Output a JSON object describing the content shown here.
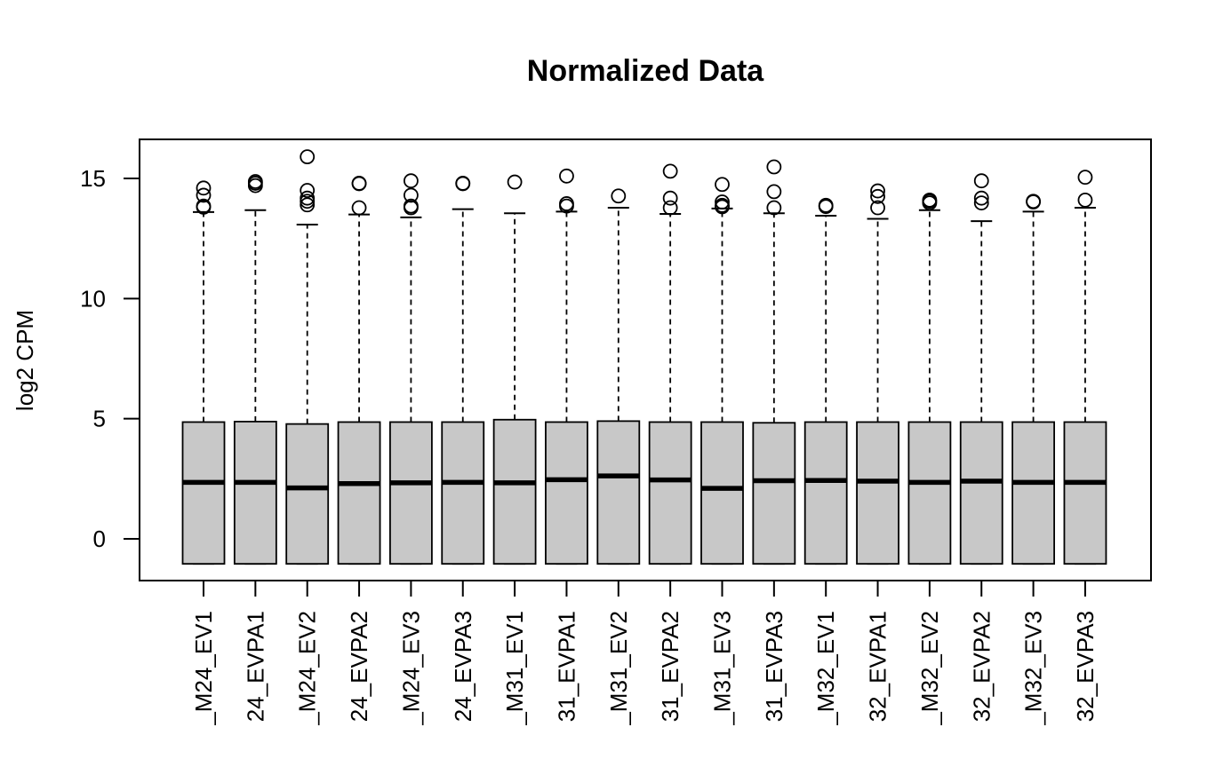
{
  "chart_data": {
    "type": "boxplot",
    "title": "Normalized Data",
    "xlabel": "",
    "ylabel": "log2 CPM",
    "ylim": [
      -1.7,
      16.6
    ],
    "yticks": [
      0,
      5,
      10,
      15
    ],
    "box_fill": "#c8c8c8",
    "categories": [
      "_M24_EV1",
      "24_EVPA1",
      "_M24_EV2",
      "24_EVPA2",
      "_M24_EV3",
      "24_EVPA3",
      "_M31_EV1",
      "31_EVPA1",
      "_M31_EV2",
      "31_EVPA2",
      "_M31_EV3",
      "31_EVPA3",
      "_M32_EV1",
      "32_EVPA1",
      "_M32_EV2",
      "32_EVPA2",
      "_M32_EV3",
      "32_EVPA3"
    ],
    "boxes": [
      {
        "min": -1.04,
        "q1": -1.04,
        "median": 2.35,
        "q3": 4.86,
        "max": 13.6,
        "outliers": [
          13.8,
          13.85,
          14.3,
          14.6
        ]
      },
      {
        "min": -1.04,
        "q1": -1.04,
        "median": 2.35,
        "q3": 4.88,
        "max": 13.68,
        "outliers": [
          14.7,
          14.8,
          14.87
        ]
      },
      {
        "min": -1.04,
        "q1": -1.04,
        "median": 2.12,
        "q3": 4.78,
        "max": 13.08,
        "outliers": [
          13.9,
          14.05,
          14.18,
          14.5,
          15.9
        ]
      },
      {
        "min": -1.04,
        "q1": -1.04,
        "median": 2.3,
        "q3": 4.86,
        "max": 13.5,
        "outliers": [
          13.78,
          14.78,
          14.8
        ]
      },
      {
        "min": -1.04,
        "q1": -1.04,
        "median": 2.33,
        "q3": 4.86,
        "max": 13.38,
        "outliers": [
          13.78,
          13.85,
          14.3,
          14.9
        ]
      },
      {
        "min": -1.04,
        "q1": -1.04,
        "median": 2.35,
        "q3": 4.86,
        "max": 13.72,
        "outliers": [
          14.78,
          14.8
        ]
      },
      {
        "min": -1.04,
        "q1": -1.04,
        "median": 2.33,
        "q3": 4.96,
        "max": 13.55,
        "outliers": [
          14.85
        ]
      },
      {
        "min": -1.04,
        "q1": -1.04,
        "median": 2.46,
        "q3": 4.86,
        "max": 13.62,
        "outliers": [
          13.85,
          13.95,
          15.1
        ]
      },
      {
        "min": -1.04,
        "q1": -1.04,
        "median": 2.62,
        "q3": 4.9,
        "max": 13.78,
        "outliers": [
          14.27
        ]
      },
      {
        "min": -1.04,
        "q1": -1.04,
        "median": 2.45,
        "q3": 4.86,
        "max": 13.52,
        "outliers": [
          13.78,
          14.18,
          15.3
        ]
      },
      {
        "min": -1.04,
        "q1": -1.04,
        "median": 2.1,
        "q3": 4.86,
        "max": 13.75,
        "outliers": [
          13.82,
          13.88,
          14.02,
          14.75
        ]
      },
      {
        "min": -1.04,
        "q1": -1.04,
        "median": 2.42,
        "q3": 4.83,
        "max": 13.55,
        "outliers": [
          13.78,
          14.45,
          15.48
        ]
      },
      {
        "min": -1.04,
        "q1": -1.04,
        "median": 2.43,
        "q3": 4.86,
        "max": 13.45,
        "outliers": [
          13.83,
          13.88
        ]
      },
      {
        "min": -1.04,
        "q1": -1.04,
        "median": 2.4,
        "q3": 4.86,
        "max": 13.32,
        "outliers": [
          13.78,
          14.25,
          14.48
        ]
      },
      {
        "min": -1.04,
        "q1": -1.04,
        "median": 2.35,
        "q3": 4.86,
        "max": 13.68,
        "outliers": [
          13.98,
          14.05,
          14.1
        ]
      },
      {
        "min": -1.04,
        "q1": -1.04,
        "median": 2.4,
        "q3": 4.86,
        "max": 13.22,
        "outliers": [
          13.98,
          14.18,
          14.9
        ]
      },
      {
        "min": -1.04,
        "q1": -1.04,
        "median": 2.35,
        "q3": 4.86,
        "max": 13.62,
        "outliers": [
          14.02,
          14.05
        ]
      },
      {
        "min": -1.04,
        "q1": -1.04,
        "median": 2.35,
        "q3": 4.86,
        "max": 13.78,
        "outliers": [
          14.1,
          15.05
        ]
      }
    ]
  }
}
